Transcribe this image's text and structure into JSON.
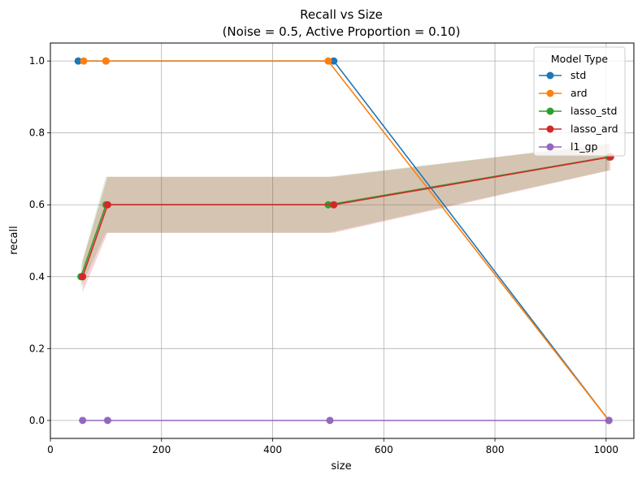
{
  "chart_data": {
    "type": "line",
    "title": "Recall vs Size",
    "subtitle": "(Noise = 0.5, Active Proportion = 0.10)",
    "xlabel": "size",
    "ylabel": "recall",
    "xlim": [
      0,
      1050
    ],
    "ylim": [
      -0.05,
      1.05
    ],
    "xticks": [
      0,
      200,
      400,
      600,
      800,
      1000
    ],
    "xtick_labels": [
      "0",
      "200",
      "400",
      "600",
      "800",
      "1000"
    ],
    "yticks": [
      0.0,
      0.2,
      0.4,
      0.6,
      0.8,
      1.0
    ],
    "ytick_labels": [
      "0.0",
      "0.2",
      "0.4",
      "0.6",
      "0.8",
      "1.0"
    ],
    "grid": true,
    "legend": {
      "title": "Model Type",
      "position": "top-right"
    },
    "series": [
      {
        "name": "std",
        "color": "#1f77b4",
        "x": [
          50,
          100,
          510,
          1005
        ],
        "y": [
          1.0,
          1.0,
          1.0,
          0.0
        ],
        "band": null
      },
      {
        "name": "ard",
        "color": "#ff7f0e",
        "x": [
          60,
          100,
          500,
          1005
        ],
        "y": [
          1.0,
          1.0,
          1.0,
          0.0
        ],
        "band": null
      },
      {
        "name": "lasso_std",
        "color": "#2ca02c",
        "x": [
          55,
          100,
          500,
          1005
        ],
        "y": [
          0.4,
          0.6,
          0.6,
          0.733
        ],
        "band": {
          "lower": [
            0.37,
            0.522,
            0.522,
            0.696
          ],
          "upper": [
            0.43,
            0.678,
            0.678,
            0.77
          ]
        }
      },
      {
        "name": "lasso_ard",
        "color": "#d62728",
        "x": [
          58,
          103,
          510,
          1008
        ],
        "y": [
          0.4,
          0.6,
          0.6,
          0.733
        ],
        "band": {
          "lower": [
            0.357,
            0.522,
            0.522,
            0.696
          ],
          "upper": [
            0.443,
            0.678,
            0.678,
            0.77
          ]
        }
      },
      {
        "name": "l1_gp",
        "color": "#9467bd",
        "x": [
          58,
          103,
          503,
          1005
        ],
        "y": [
          0.0,
          0.0,
          0.0,
          0.0
        ],
        "band": null
      }
    ]
  }
}
